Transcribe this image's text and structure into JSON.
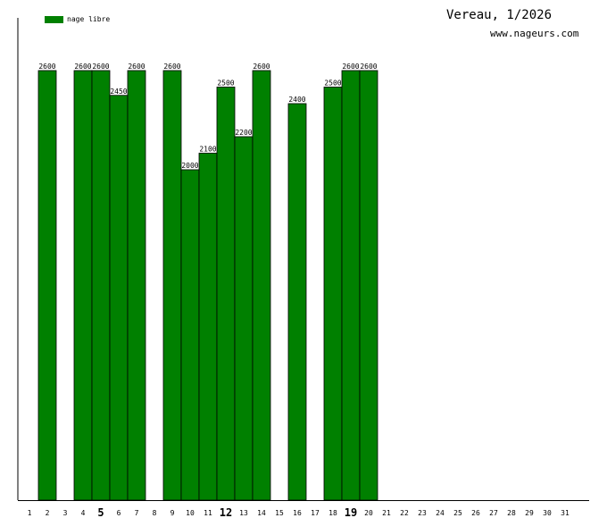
{
  "header": {
    "title": "Vereau, 1/2026",
    "site": "www.nageurs.com"
  },
  "legend": {
    "label": "nage libre",
    "color": "#008000"
  },
  "chart_data": {
    "type": "bar",
    "categories": [
      "1",
      "2",
      "3",
      "4",
      "5",
      "6",
      "7",
      "8",
      "9",
      "10",
      "11",
      "12",
      "13",
      "14",
      "15",
      "16",
      "17",
      "18",
      "19",
      "20",
      "21",
      "22",
      "23",
      "24",
      "25",
      "26",
      "27",
      "28",
      "29",
      "30",
      "31"
    ],
    "bold_categories": [
      "5",
      "12",
      "19"
    ],
    "series": [
      {
        "name": "nage libre",
        "color": "#008000",
        "values": [
          null,
          2600,
          null,
          2600,
          2600,
          2450,
          2600,
          null,
          2600,
          2000,
          2100,
          2500,
          2200,
          2600,
          null,
          2400,
          null,
          2500,
          2600,
          2600,
          null,
          null,
          null,
          null,
          null,
          null,
          null,
          null,
          null,
          null,
          null
        ]
      }
    ],
    "ylim": [
      0,
      2600
    ],
    "grid": false,
    "legend_position": "top-left"
  }
}
